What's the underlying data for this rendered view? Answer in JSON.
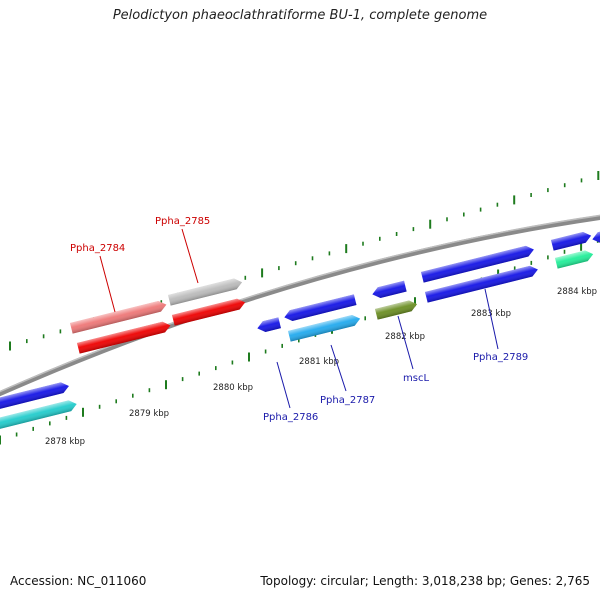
{
  "title": "Pelodictyon phaeoclathratiforme BU-1, complete genome",
  "footer": {
    "accession": "Accession: NC_011060",
    "info": "Topology: circular; Length: 3,018,238 bp; Genes: 2,765"
  },
  "colors": {
    "backbone": "#8a8a8a",
    "ticks": "#1e7b1e",
    "label_red": "#cc0000",
    "label_blue": "#1a1aaa",
    "gene_blue": "#1414e6",
    "gene_cyan": "#22aaee",
    "gene_teal": "#22cccc",
    "gene_red": "#ee0000",
    "gene_pink": "#ee7777",
    "gene_gray": "#bbbbbb",
    "gene_olive": "#6b8e23",
    "gene_green": "#22ee99"
  },
  "scale_labels": [
    "2878 kbp",
    "2879 kbp",
    "2880 kbp",
    "2881 kbp",
    "2882 kbp",
    "2883 kbp",
    "2884 kbp"
  ],
  "gene_labels": {
    "ppha_2784": "Ppha_2784",
    "ppha_2785": "Ppha_2785",
    "ppha_2786": "Ppha_2786",
    "ppha_2787": "Ppha_2787",
    "mscl": "mscL",
    "ppha_2789": "Ppha_2789"
  }
}
